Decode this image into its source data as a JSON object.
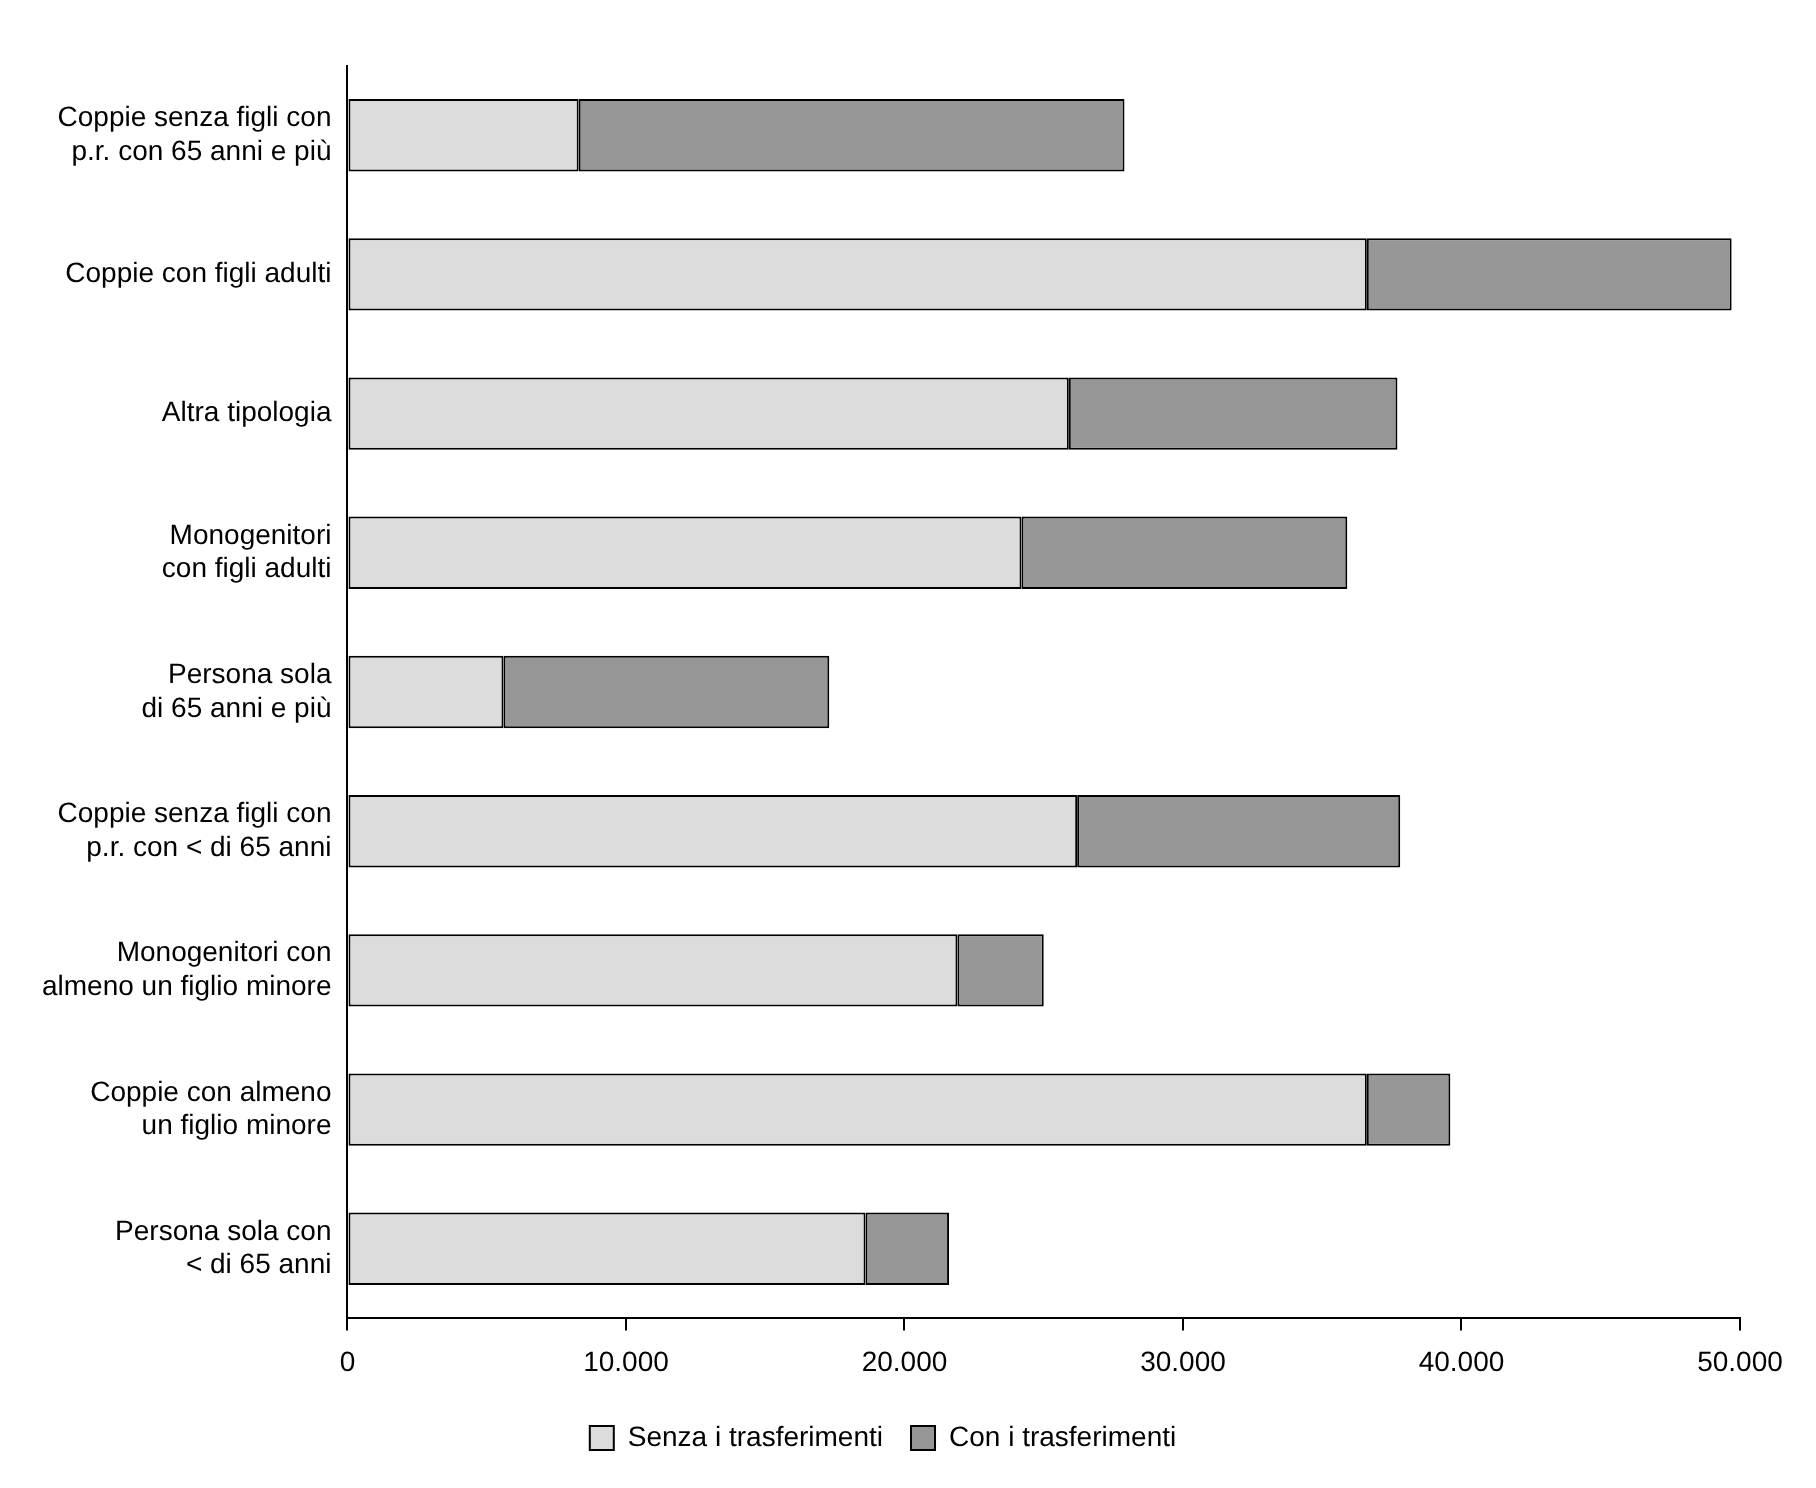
{
  "chart_data": {
    "type": "bar",
    "orientation": "horizontal",
    "stacked": true,
    "grid": false,
    "legend": "bottom",
    "categories": [
      "Coppie senza figli con\np.r. con 65 anni e più",
      "Coppie con figli adulti",
      "Altra tipologia",
      "Monogenitori\ncon figli adulti",
      "Persona sola\ndi 65 anni e più",
      "Coppie senza figli con\np.r. con < di 65 anni",
      "Monogenitori con\nalmeno un figlio minore",
      "Coppie con almeno\nun figlio minore",
      "Persona sola con\n< di 65 anni"
    ],
    "series": [
      {
        "name": "Senza i trasferimenti",
        "color": "#dcdcdc",
        "values": [
          8300,
          36600,
          25900,
          24200,
          5600,
          26200,
          21900,
          36600,
          18600
        ]
      },
      {
        "name": "Con i trasferimenti",
        "color": "#969696",
        "values": [
          19600,
          13100,
          11800,
          11700,
          11700,
          11600,
          3100,
          3000,
          3000
        ]
      }
    ],
    "xlim": [
      0,
      50000
    ],
    "xticks": [
      {
        "value": 0,
        "label": "0"
      },
      {
        "value": 10000,
        "label": "10.000"
      },
      {
        "value": 20000,
        "label": "20.000"
      },
      {
        "value": 30000,
        "label": "30.000"
      },
      {
        "value": 40000,
        "label": "40.000"
      },
      {
        "value": 50000,
        "label": "50.000"
      }
    ]
  }
}
